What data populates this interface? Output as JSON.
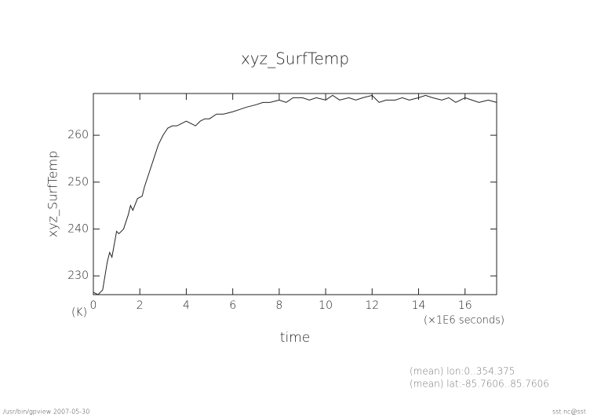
{
  "chart_data": {
    "type": "line",
    "title": "xyz_SurfTemp",
    "y_label": "xyz_SurfTemp",
    "y_unit": "(K)",
    "x_label": "time",
    "x_unit": "(×1E6 seconds)",
    "annotations": [
      "(mean) lon:0..354.375",
      "(mean) lat:-85.7606..85.7606"
    ],
    "footer_left": "/usr/bin/gpview  2007-05-30",
    "footer_right": "sst.nc@sst",
    "color": "#222222",
    "x": [
      0,
      0.2,
      0.4,
      0.6,
      0.7,
      0.8,
      1.0,
      1.1,
      1.3,
      1.5,
      1.6,
      1.7,
      1.9,
      2.1,
      2.2,
      2.4,
      2.6,
      2.8,
      3.0,
      3.2,
      3.4,
      3.6,
      3.8,
      4.0,
      4.2,
      4.4,
      4.6,
      4.8,
      5.0,
      5.3,
      5.6,
      6.0,
      6.3,
      6.6,
      7.0,
      7.3,
      7.6,
      8.0,
      8.3,
      8.6,
      9.0,
      9.3,
      9.6,
      10.0,
      10.3,
      10.6,
      11.0,
      11.3,
      11.6,
      12.0,
      12.3,
      12.6,
      13.0,
      13.3,
      13.6,
      14.0,
      14.3,
      14.6,
      15.0,
      15.3,
      15.6,
      16.0,
      16.3,
      16.6,
      17.0,
      17.36
    ],
    "values": [
      226.5,
      226,
      227,
      233,
      235,
      234,
      239.5,
      239,
      240,
      243,
      245,
      244,
      246.5,
      247,
      249,
      252,
      255,
      258,
      260,
      261.5,
      262,
      262,
      262.5,
      263,
      262.5,
      262,
      263,
      263.5,
      263.5,
      264.5,
      264.5,
      265,
      265.5,
      266,
      266.5,
      267,
      267,
      267.5,
      267,
      268,
      268,
      267.5,
      268,
      267.5,
      268.5,
      267.5,
      268,
      267.5,
      268,
      268.5,
      267,
      267.5,
      267.5,
      268,
      267.5,
      268,
      268.5,
      268,
      267.5,
      268,
      267,
      268,
      267.5,
      267,
      267.5,
      267
    ],
    "xlim": [
      0,
      17.36
    ],
    "ylim": [
      226,
      268.9
    ],
    "xticks": [
      0,
      2,
      4,
      6,
      8,
      10,
      12,
      14,
      16
    ],
    "yticks": [
      230,
      240,
      250,
      260
    ]
  }
}
